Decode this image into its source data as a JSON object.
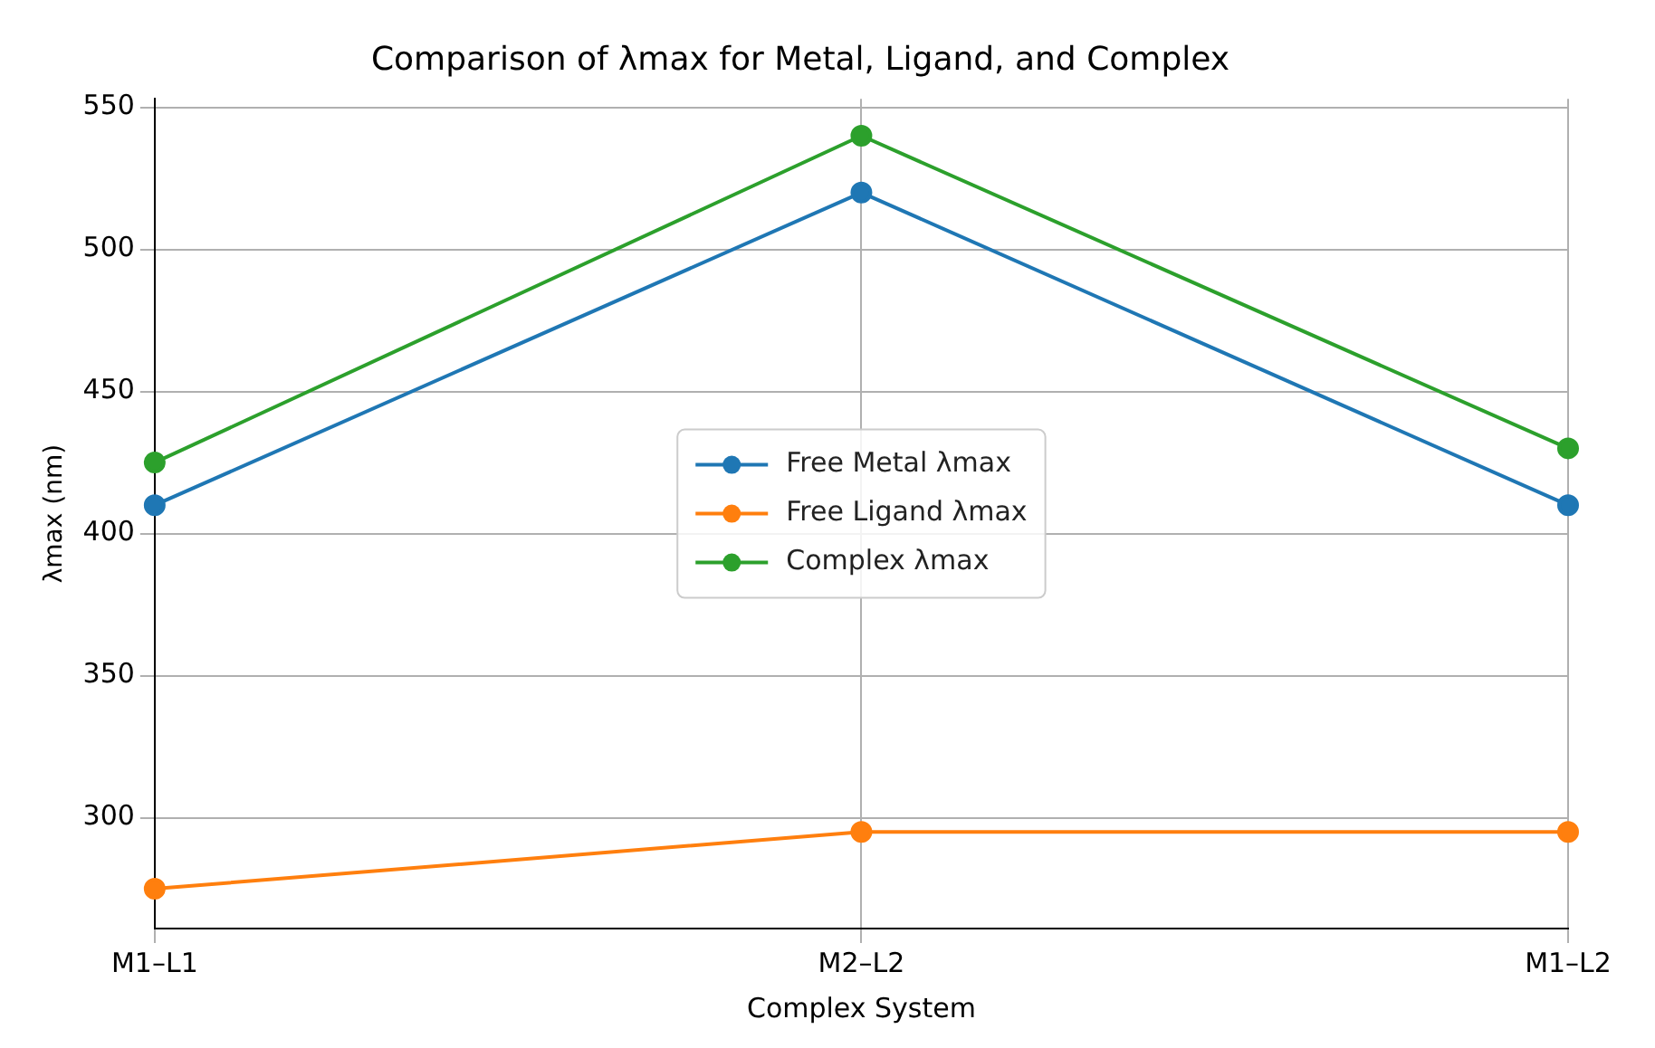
{
  "chart_data": {
    "type": "line",
    "title": "Comparison of λmax for Metal, Ligand, and Complex",
    "xlabel": "Complex System",
    "ylabel": "λmax (nm)",
    "categories": [
      "M1–L1",
      "M2–L2",
      "M1–L2"
    ],
    "series": [
      {
        "name": "Free Metal λmax",
        "color": "#1f77b4",
        "values": [
          410,
          520,
          410
        ]
      },
      {
        "name": "Free Ligand λmax",
        "color": "#ff7f0e",
        "values": [
          275,
          295,
          295
        ]
      },
      {
        "name": "Complex λmax",
        "color": "#2ca02c",
        "values": [
          425,
          540,
          430
        ]
      }
    ],
    "ylim": [
      261,
      553
    ],
    "yticks": [
      300,
      350,
      400,
      450,
      500,
      550
    ],
    "grid": true,
    "legend": "center",
    "marker": "circle",
    "line_style": "solid"
  }
}
